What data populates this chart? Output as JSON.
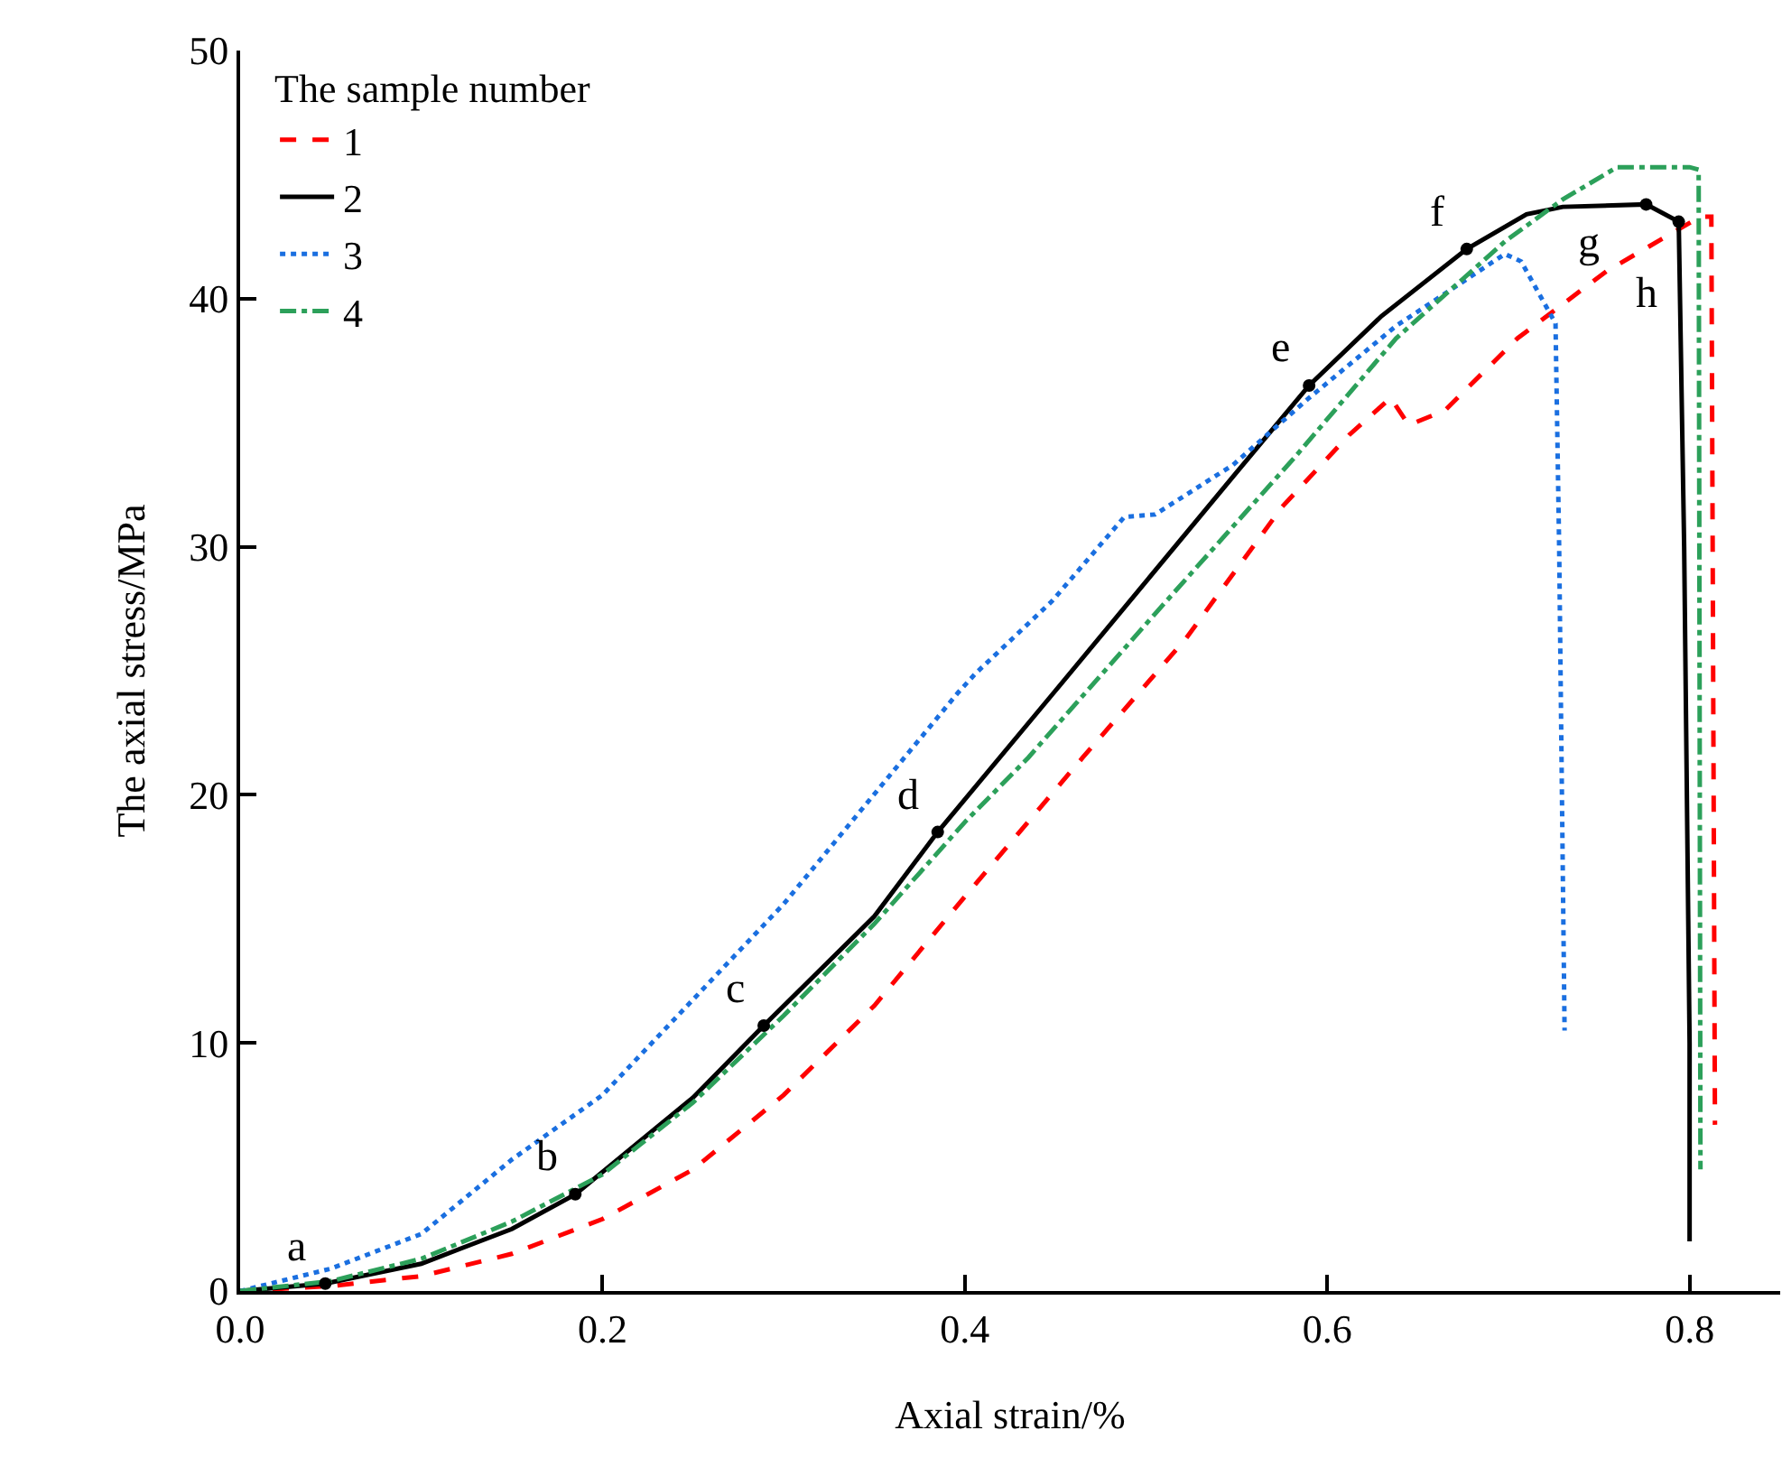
{
  "chart_data": {
    "type": "line",
    "xlabel": "Axial strain/%",
    "ylabel": "The axial stress/MPa",
    "legend_title": "The sample number",
    "legend": "top left",
    "grid": false,
    "xlim": [
      0,
      0.85
    ],
    "xticks": [
      {
        "value": 0,
        "label": "0.0"
      },
      0.2,
      0.4,
      0.6,
      0.8
    ],
    "ylim": [
      0,
      50
    ],
    "yticks": [
      0,
      10,
      20,
      30,
      40,
      50
    ],
    "series": [
      {
        "name": "1",
        "color": "#ff0000",
        "line_style": "dashed",
        "x": [
          0,
          0.05,
          0.1,
          0.15,
          0.2,
          0.25,
          0.3,
          0.35,
          0.4,
          0.465,
          0.522,
          0.575,
          0.612,
          0.635,
          0.645,
          0.665,
          0.705,
          0.754,
          0.794,
          0.806,
          0.812,
          0.814
        ],
        "values": [
          0,
          0.2,
          0.6,
          1.5,
          2.9,
          4.9,
          7.9,
          11.5,
          15.9,
          21.5,
          26.3,
          31.6,
          34.5,
          36.0,
          34.9,
          35.5,
          38.4,
          41.1,
          42.8,
          43.3,
          43.3,
          6.7
        ]
      },
      {
        "name": "2",
        "color": "#000000",
        "line_style": "solid",
        "x": [
          0,
          0.047,
          0.1,
          0.15,
          0.185,
          0.25,
          0.289,
          0.35,
          0.385,
          0.45,
          0.5,
          0.55,
          0.59,
          0.63,
          0.677,
          0.71,
          0.73,
          0.776,
          0.794,
          0.797,
          0.8,
          0.8
        ],
        "values": [
          0,
          0.3,
          1.1,
          2.5,
          3.9,
          7.8,
          10.7,
          15.1,
          18.5,
          24.2,
          28.6,
          33.0,
          36.5,
          39.3,
          42.0,
          43.4,
          43.7,
          43.8,
          43.1,
          30,
          10,
          2
        ]
      },
      {
        "name": "3",
        "color": "#1a6fe0",
        "line_style": "dotted",
        "x": [
          0,
          0.05,
          0.1,
          0.15,
          0.2,
          0.3,
          0.396,
          0.406,
          0.448,
          0.488,
          0.505,
          0.548,
          0.59,
          0.638,
          0.698,
          0.707,
          0.726,
          0.728,
          0.731
        ],
        "values": [
          0,
          0.9,
          2.3,
          5.3,
          7.9,
          15.6,
          24.1,
          24.9,
          27.8,
          31.2,
          31.3,
          33.3,
          36.0,
          38.9,
          41.8,
          41.5,
          39.0,
          30,
          10.5
        ]
      },
      {
        "name": "4",
        "color": "#2ca05a",
        "line_style": "dashdot",
        "x": [
          0,
          0.05,
          0.1,
          0.15,
          0.2,
          0.25,
          0.3,
          0.35,
          0.4,
          0.435,
          0.505,
          0.582,
          0.638,
          0.698,
          0.73,
          0.76,
          0.8,
          0.805,
          0.806
        ],
        "values": [
          0,
          0.4,
          1.3,
          2.8,
          4.7,
          7.6,
          11.1,
          14.8,
          18.9,
          21.5,
          27.3,
          33.6,
          38.4,
          42.3,
          44.0,
          45.3,
          45.3,
          45.2,
          4.9
        ]
      },
      {
        "type": "scatter",
        "color": "#000000",
        "marker": "circle",
        "x": [
          0.047,
          0.185,
          0.289,
          0.385,
          0.59,
          0.677,
          0.776,
          0.794
        ],
        "values": [
          0.3,
          3.9,
          10.7,
          18.5,
          36.5,
          42.0,
          43.8,
          43.1
        ]
      }
    ],
    "annotations": [
      {
        "text": "a",
        "x": 0.047,
        "y": 0.3
      },
      {
        "text": "b",
        "x": 0.185,
        "y": 3.9
      },
      {
        "text": "c",
        "x": 0.289,
        "y": 10.7
      },
      {
        "text": "d",
        "x": 0.385,
        "y": 18.5
      },
      {
        "text": "e",
        "x": 0.59,
        "y": 36.5
      },
      {
        "text": "f",
        "x": 0.677,
        "y": 42.0
      },
      {
        "text": "g",
        "x": 0.776,
        "y": 43.8
      },
      {
        "text": "h",
        "x": 0.794,
        "y": 43.1
      }
    ]
  }
}
